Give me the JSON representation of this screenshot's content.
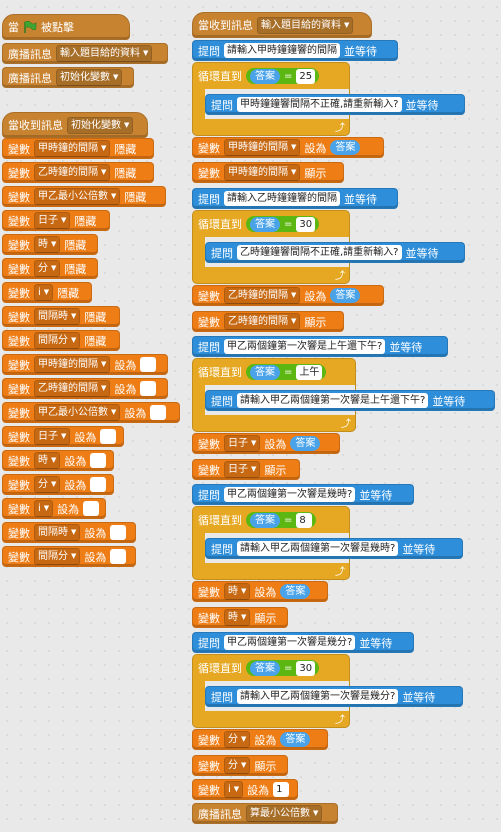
{
  "left": {
    "green_flag_script": {
      "when": "當",
      "clicked": "被點擊",
      "b1_kw": "廣播訊息",
      "b1_val": "輸入題目給的資料",
      "b2_kw": "廣播訊息",
      "b2_val": "初始化變數"
    },
    "init_script": {
      "hat_kw": "當收到訊息",
      "hat_val": "初始化變數",
      "var_kw": "變數",
      "hide": "隱藏",
      "set_to": "設為",
      "hide_vars": [
        "甲時鐘的間隔",
        "乙時鐘的間隔",
        "甲乙最小公倍數",
        "日子",
        "時",
        "分",
        "i",
        "間隔時",
        "間隔分"
      ],
      "set_vars": [
        "甲時鐘的間隔",
        "乙時鐘的間隔",
        "甲乙最小公倍數",
        "日子",
        "時",
        "分",
        "i",
        "間隔時",
        "間隔分"
      ]
    }
  },
  "right": {
    "hat_kw": "當收到訊息",
    "hat_val": "輸入題目給的資料",
    "ask_kw": "提問",
    "wait": "並等待",
    "var_kw": "變數",
    "set_to": "設為",
    "show": "顯示",
    "repeat_until": "循環直到",
    "answer": "答案",
    "eq": "=",
    "q1": "請輸入甲時鐘鐘響的間隔",
    "c1": "25",
    "r1": "甲時鐘鐘響間隔不正確,請重新輸入?",
    "v1": "甲時鐘的間隔",
    "q2": "請輸入乙時鐘鐘響的間隔",
    "c2": "30",
    "r2": "乙時鐘鐘響間隔不正確,請重新輸入?",
    "v2": "乙時鐘的間隔",
    "q3": "甲乙兩個鐘第一次響是上午還下午?",
    "c3": "上午",
    "r3": "請輸入甲乙兩個鐘第一次響是上午還下午?",
    "v3": "日子",
    "q4": "甲乙兩個鐘第一次響是幾時?",
    "c4": "8",
    "r4": "請輸入甲乙兩個鐘第一次響是幾時?",
    "v4": "時",
    "q5": "甲乙兩個鐘第一次響是幾分?",
    "c5": "30",
    "r5": "請輸入甲乙兩個鐘第一次響是幾分?",
    "v5": "分",
    "vi": "i",
    "vi_val": "1",
    "bc_kw": "廣播訊息",
    "bc_val": "算最小公倍數"
  },
  "colors": {
    "events": "#c88330",
    "variables": "#ee7d16",
    "sensing": "#2e8eda",
    "control": "#e6a822",
    "operators": "#5cb712",
    "flag": "#3fa531"
  }
}
